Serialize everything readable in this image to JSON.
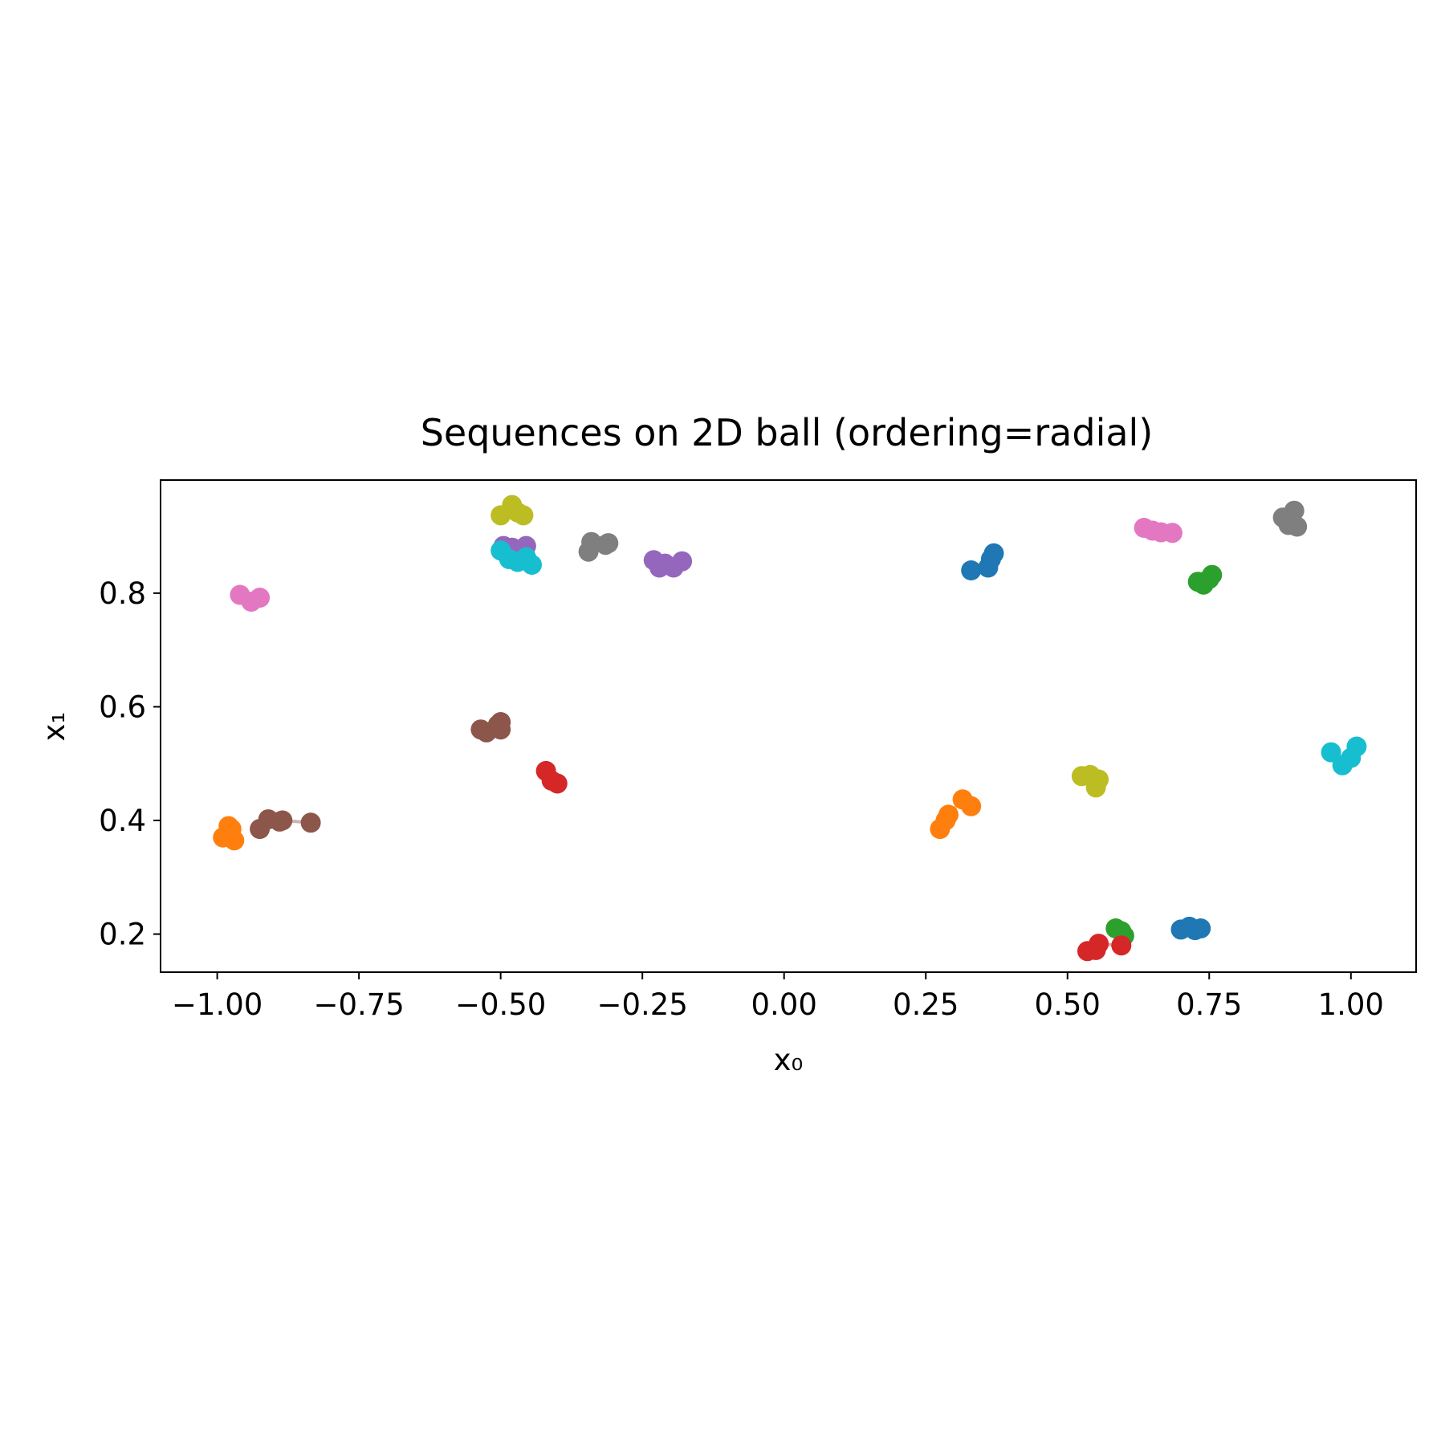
{
  "chart_data": {
    "type": "scatter",
    "title": "Sequences on 2D ball (ordering=radial)",
    "xlabel": "x₀",
    "ylabel": "x₁",
    "xlim": [
      -1.1,
      1.115
    ],
    "ylim": [
      0.133,
      0.999
    ],
    "xticks": [
      -1.0,
      -0.75,
      -0.5,
      -0.25,
      0.0,
      0.25,
      0.5,
      0.75,
      1.0
    ],
    "xtick_labels": [
      "−1.00",
      "−0.75",
      "−0.50",
      "−0.25",
      "0.00",
      "0.25",
      "0.50",
      "0.75",
      "1.00"
    ],
    "yticks": [
      0.2,
      0.4,
      0.6,
      0.8
    ],
    "ytick_labels": [
      "0.2",
      "0.4",
      "0.6",
      "0.8"
    ],
    "grid": false,
    "legend": "none",
    "series": [
      {
        "color": "#1f77b4",
        "points": [
          [
            0.33,
            0.84
          ],
          [
            0.36,
            0.845
          ],
          [
            0.365,
            0.86
          ],
          [
            0.37,
            0.87
          ]
        ]
      },
      {
        "color": "#1f77b4",
        "points": [
          [
            0.7,
            0.208
          ],
          [
            0.715,
            0.213
          ],
          [
            0.725,
            0.207
          ],
          [
            0.735,
            0.21
          ]
        ]
      },
      {
        "color": "#ff7f0e",
        "points": [
          [
            -0.99,
            0.37
          ],
          [
            -0.98,
            0.39
          ],
          [
            -0.975,
            0.385
          ],
          [
            -0.97,
            0.365
          ]
        ]
      },
      {
        "color": "#ff7f0e",
        "points": [
          [
            0.275,
            0.385
          ],
          [
            0.285,
            0.4
          ],
          [
            0.29,
            0.41
          ],
          [
            0.315,
            0.437
          ],
          [
            0.33,
            0.425
          ]
        ]
      },
      {
        "color": "#2ca02c",
        "points": [
          [
            0.73,
            0.82
          ],
          [
            0.74,
            0.815
          ],
          [
            0.75,
            0.825
          ],
          [
            0.755,
            0.832
          ]
        ]
      },
      {
        "color": "#2ca02c",
        "points": [
          [
            0.585,
            0.21
          ],
          [
            0.595,
            0.205
          ],
          [
            0.6,
            0.197
          ]
        ]
      },
      {
        "color": "#d62728",
        "points": [
          [
            -0.42,
            0.487
          ],
          [
            -0.41,
            0.47
          ],
          [
            -0.4,
            0.465
          ]
        ]
      },
      {
        "color": "#d62728",
        "points": [
          [
            0.535,
            0.17
          ],
          [
            0.55,
            0.172
          ],
          [
            0.555,
            0.183
          ],
          [
            0.595,
            0.18
          ]
        ]
      },
      {
        "color": "#9467bd",
        "points": [
          [
            -0.495,
            0.883
          ],
          [
            -0.48,
            0.88
          ],
          [
            -0.455,
            0.883
          ]
        ]
      },
      {
        "color": "#9467bd",
        "points": [
          [
            -0.23,
            0.858
          ],
          [
            -0.22,
            0.845
          ],
          [
            -0.21,
            0.852
          ],
          [
            -0.195,
            0.845
          ],
          [
            -0.18,
            0.856
          ]
        ]
      },
      {
        "color": "#8c564b",
        "points": [
          [
            -0.535,
            0.56
          ],
          [
            -0.525,
            0.555
          ],
          [
            -0.505,
            0.568
          ],
          [
            -0.5,
            0.573
          ],
          [
            -0.5,
            0.56
          ]
        ]
      },
      {
        "color": "#8c564b",
        "points": [
          [
            -0.925,
            0.385
          ],
          [
            -0.91,
            0.402
          ],
          [
            -0.89,
            0.398
          ],
          [
            -0.885,
            0.4
          ],
          [
            -0.835,
            0.396
          ]
        ]
      },
      {
        "color": "#e377c2",
        "points": [
          [
            -0.96,
            0.797
          ],
          [
            -0.94,
            0.785
          ],
          [
            -0.925,
            0.792
          ]
        ]
      },
      {
        "color": "#e377c2",
        "points": [
          [
            0.635,
            0.915
          ],
          [
            0.65,
            0.91
          ],
          [
            0.665,
            0.907
          ],
          [
            0.685,
            0.906
          ]
        ]
      },
      {
        "color": "#7f7f7f",
        "points": [
          [
            -0.345,
            0.873
          ],
          [
            -0.34,
            0.89
          ],
          [
            -0.315,
            0.885
          ],
          [
            -0.31,
            0.888
          ]
        ]
      },
      {
        "color": "#7f7f7f",
        "points": [
          [
            0.88,
            0.933
          ],
          [
            0.89,
            0.92
          ],
          [
            0.9,
            0.945
          ],
          [
            0.905,
            0.917
          ]
        ]
      },
      {
        "color": "#bcbd22",
        "points": [
          [
            -0.5,
            0.937
          ],
          [
            -0.48,
            0.955
          ],
          [
            -0.47,
            0.942
          ],
          [
            -0.46,
            0.937
          ]
        ]
      },
      {
        "color": "#bcbd22",
        "points": [
          [
            0.525,
            0.478
          ],
          [
            0.54,
            0.48
          ],
          [
            0.55,
            0.458
          ],
          [
            0.555,
            0.472
          ]
        ]
      },
      {
        "color": "#17becf",
        "points": [
          [
            -0.5,
            0.875
          ],
          [
            -0.485,
            0.86
          ],
          [
            -0.47,
            0.855
          ],
          [
            -0.455,
            0.863
          ],
          [
            -0.445,
            0.85
          ]
        ]
      },
      {
        "color": "#17becf",
        "points": [
          [
            0.965,
            0.52
          ],
          [
            0.985,
            0.497
          ],
          [
            1.0,
            0.51
          ],
          [
            1.01,
            0.53
          ]
        ]
      }
    ]
  }
}
